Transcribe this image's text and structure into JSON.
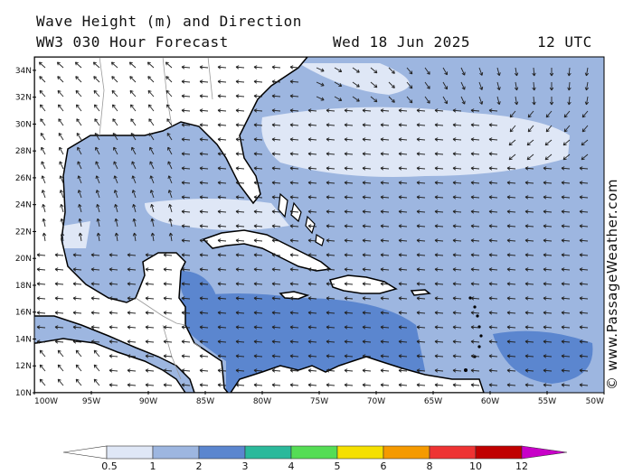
{
  "header": {
    "title": "Wave Height (m) and Direction",
    "model": "WW3 030 Hour Forecast",
    "date": "Wed 18 Jun 2025",
    "time": "12 UTC"
  },
  "credit": "© www.PassageWeather.com",
  "axes": {
    "lat_labels": [
      "10N",
      "12N",
      "14N",
      "16N",
      "18N",
      "20N",
      "22N",
      "24N",
      "26N",
      "28N",
      "30N",
      "32N",
      "34N"
    ],
    "lon_labels": [
      "100W",
      "95W",
      "90W",
      "85W",
      "80W",
      "75W",
      "70W",
      "65W",
      "60W",
      "55W",
      "50W"
    ],
    "lat_range": [
      10,
      35
    ],
    "lon_range": [
      -100,
      -50
    ]
  },
  "colorbar": {
    "labels": [
      "0.5",
      "1",
      "2",
      "3",
      "4",
      "5",
      "6",
      "8",
      "10",
      "12"
    ],
    "colors": [
      "#ffffff",
      "#dfe7f6",
      "#9db6e0",
      "#5b86cf",
      "#2bb99b",
      "#55dd55",
      "#f5e000",
      "#f59a00",
      "#ee3333",
      "#c00000",
      "#c800c8"
    ]
  },
  "palette": {
    "land": "#ffffff",
    "wave_low": "#dfe7f6",
    "wave_mid": "#9db6e0",
    "wave_high": "#5b86cf",
    "coast": "#000000",
    "border": "#999999"
  }
}
